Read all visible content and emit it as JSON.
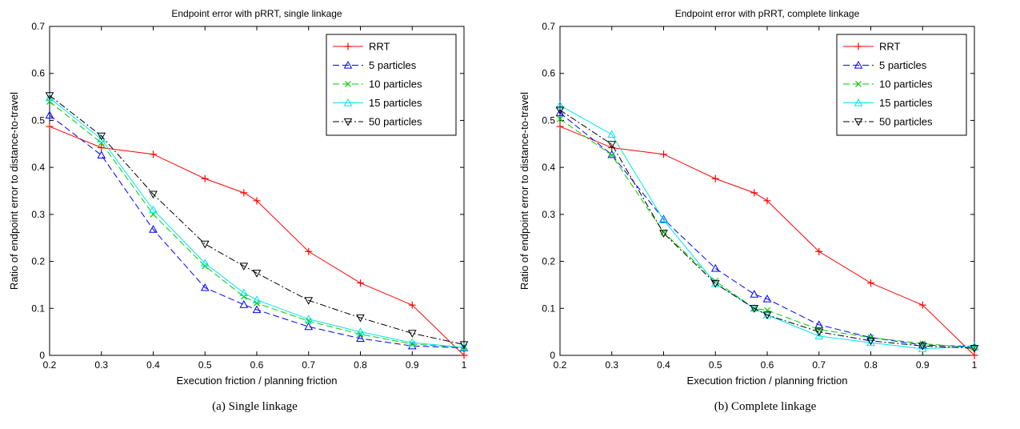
{
  "chart_data": [
    {
      "type": "line",
      "title": "Endpoint error with pRRT, single linkage",
      "xlabel": "Execution friction / planning friction",
      "ylabel": "Ratio of endpoint error to distance-to-travel",
      "xlim": [
        0.2,
        1
      ],
      "ylim": [
        0,
        0.7
      ],
      "xticks": [
        "0.2",
        "0.3",
        "0.4",
        "0.5",
        "0.6",
        "0.7",
        "0.8",
        "0.9",
        "1"
      ],
      "yticks": [
        "0",
        "0.1",
        "0.2",
        "0.3",
        "0.4",
        "0.5",
        "0.6",
        "0.7"
      ],
      "grid": false,
      "legend_position": "top-right",
      "x": [
        0.2,
        0.3,
        0.4,
        0.5,
        0.575,
        0.6,
        0.7,
        0.8,
        0.9,
        1
      ],
      "series": [
        {
          "name": "RRT",
          "color": "#ff0000",
          "dash": "",
          "marker": "plus",
          "values": [
            0.487,
            0.442,
            0.428,
            0.376,
            0.346,
            0.329,
            0.221,
            0.154,
            0.107,
            0.0
          ]
        },
        {
          "name": "5 particles",
          "color": "#0000ff",
          "dash": "8,4",
          "marker": "triangle-up",
          "values": [
            0.511,
            0.426,
            0.268,
            0.144,
            0.108,
            0.097,
            0.061,
            0.036,
            0.02,
            0.016
          ]
        },
        {
          "name": "10 particles",
          "color": "#00cc00",
          "dash": "8,4",
          "marker": "x",
          "values": [
            0.54,
            0.452,
            0.3,
            0.19,
            0.125,
            0.111,
            0.073,
            0.045,
            0.024,
            0.017
          ]
        },
        {
          "name": "15 particles",
          "color": "#00e5ee",
          "dash": "",
          "marker": "triangle-up",
          "values": [
            0.548,
            0.46,
            0.31,
            0.196,
            0.133,
            0.118,
            0.077,
            0.05,
            0.027,
            0.017
          ]
        },
        {
          "name": "50 particles",
          "color": "#000000",
          "dash": "8,3,2,3",
          "marker": "triangle-down",
          "values": [
            0.553,
            0.467,
            0.343,
            0.237,
            0.19,
            0.175,
            0.117,
            0.08,
            0.047,
            0.023
          ]
        }
      ]
    },
    {
      "type": "line",
      "title": "Endpoint error with pRRT, complete linkage",
      "xlabel": "Execution friction / planning friction",
      "ylabel": "Ratio of endpoint error to distance-to-travel",
      "xlim": [
        0.2,
        1
      ],
      "ylim": [
        0,
        0.7
      ],
      "xticks": [
        "0.2",
        "0.3",
        "0.4",
        "0.5",
        "0.6",
        "0.7",
        "0.8",
        "0.9",
        "1"
      ],
      "yticks": [
        "0",
        "0.1",
        "0.2",
        "0.3",
        "0.4",
        "0.5",
        "0.6",
        "0.7"
      ],
      "grid": false,
      "legend_position": "top-right",
      "x": [
        0.2,
        0.3,
        0.4,
        0.5,
        0.575,
        0.6,
        0.7,
        0.8,
        0.9,
        1
      ],
      "series": [
        {
          "name": "RRT",
          "color": "#ff0000",
          "dash": "",
          "marker": "plus",
          "values": [
            0.487,
            0.442,
            0.428,
            0.376,
            0.346,
            0.329,
            0.221,
            0.154,
            0.107,
            0.0
          ]
        },
        {
          "name": "5 particles",
          "color": "#0000ff",
          "dash": "8,4",
          "marker": "triangle-up",
          "values": [
            0.516,
            0.427,
            0.29,
            0.185,
            0.13,
            0.12,
            0.065,
            0.038,
            0.022,
            0.019
          ]
        },
        {
          "name": "10 particles",
          "color": "#00cc00",
          "dash": "8,4",
          "marker": "x",
          "values": [
            0.503,
            0.426,
            0.262,
            0.158,
            0.1,
            0.096,
            0.055,
            0.038,
            0.025,
            0.016
          ]
        },
        {
          "name": "15 particles",
          "color": "#00e5ee",
          "dash": "",
          "marker": "triangle-up",
          "values": [
            0.532,
            0.47,
            0.288,
            0.153,
            0.1,
            0.086,
            0.041,
            0.027,
            0.014,
            0.019
          ]
        },
        {
          "name": "50 particles",
          "color": "#000000",
          "dash": "8,3,2,3",
          "marker": "triangle-down",
          "values": [
            0.522,
            0.449,
            0.26,
            0.153,
            0.1,
            0.086,
            0.05,
            0.031,
            0.02,
            0.015
          ]
        }
      ]
    }
  ],
  "captions": {
    "a": "(a)  Single linkage",
    "b": "(b)  Complete linkage"
  }
}
